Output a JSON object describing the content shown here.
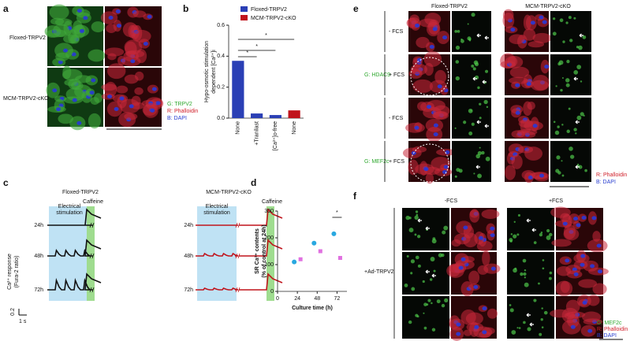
{
  "panels": {
    "a": {
      "letter": "a",
      "rows": [
        "Floxed-TRPV2",
        "MCM-TRPV2-cKO"
      ],
      "legend": [
        "G: TRPV2",
        "R: Phalloidin",
        "B: DAPI"
      ]
    },
    "b": {
      "letter": "b"
    },
    "c": {
      "letter": "c",
      "groups": [
        "Floxed-TRPV2",
        "MCM-TRPV2-cKO"
      ],
      "stimulus": [
        "Electrical",
        "stimulation"
      ],
      "caffeine": "Caffeine",
      "times": [
        "24h",
        "48h",
        "72h"
      ],
      "y_label": [
        "Ca²⁺ response",
        "(Fura-2 ratio)"
      ],
      "scale_y": "0.2",
      "scale_x": "1 s"
    },
    "d": {
      "letter": "d"
    },
    "e": {
      "letter": "e",
      "columns": [
        "Floxed-TRPV2",
        "MCM-TRPV2-cKO"
      ],
      "stains": [
        "G: HDAC9",
        "G: MEF2c"
      ],
      "conditions": [
        "- FCS",
        "+ FCS",
        "- FCS",
        "+ FCS"
      ],
      "legend": [
        "R: Phalloidin",
        "B: DAPI"
      ]
    },
    "f": {
      "letter": "f",
      "columns": [
        "-FCS",
        "+FCS"
      ],
      "row_label": "+Ad-TRPV2",
      "legend": [
        "G: MEF2c",
        "R: Phalloidin",
        "B: DAPI"
      ]
    }
  },
  "chart_data": [
    {
      "type": "bar",
      "y_label": [
        "Hypo-osmotic stimulation",
        "dependent [Ca²⁺]i"
      ],
      "categories": [
        "None",
        "+Tranilast",
        "[Ca²⁺]o-free",
        "None"
      ],
      "series": [
        {
          "name": "Floxed-TRPV2",
          "color": "#2a3fb5",
          "values": [
            0.37,
            0.03,
            0.02,
            null
          ]
        },
        {
          "name": "MCM-TRPV2-cKO",
          "color": "#c0141c",
          "values": [
            null,
            null,
            null,
            0.05
          ]
        }
      ],
      "ylim": [
        0,
        0.6
      ],
      "yticks": [
        {
          "value": 0,
          "label": "0.0"
        },
        0.2,
        0.4,
        0.6
      ],
      "annotations": [
        "*",
        "*",
        "*"
      ]
    },
    {
      "type": "scatter",
      "x_label": "Culture time (h)",
      "y_label": [
        "SR Ca²⁺ contents",
        "(% of control at 24h)"
      ],
      "x": [
        24,
        48,
        72
      ],
      "series": [
        {
          "color": "#29a8e0",
          "values": [
            110,
            180,
            215
          ]
        },
        {
          "color": "#e070e0",
          "values": [
            120,
            150,
            125
          ]
        }
      ],
      "xlim": [
        0,
        84
      ],
      "xticks": [
        0,
        24,
        48,
        72
      ],
      "ylim": [
        0,
        300
      ],
      "yticks": [
        0,
        100,
        200,
        300
      ],
      "annotations": [
        "*"
      ]
    }
  ]
}
